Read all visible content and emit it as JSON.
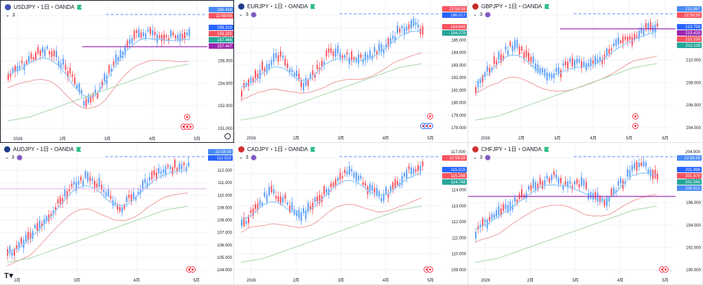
{
  "panes": [
    {
      "id": "usdjpy",
      "symbol_line": "USDJPY・1日・OANDA",
      "flag_color": "#3f51b5",
      "indicator_count": "3",
      "show_purple_dot": false,
      "active": true,
      "price_labels": [
        {
          "text": "160.418",
          "color": "#4a8bf5"
        },
        {
          "text": "22:58:59",
          "color": "#f7525f"
        },
        {
          "text": "159.210",
          "color": "#2962ff"
        },
        {
          "text": "158.282",
          "color": "#f7525f"
        },
        {
          "text": "157.466",
          "color": "#26a69a"
        },
        {
          "text": "157.447",
          "color": "#9c27b0"
        }
      ],
      "y_ticks": [
        "160.000",
        "158.000",
        "156.000",
        "154.000",
        "152.000",
        "151.000"
      ],
      "x_ticks": [
        "2026",
        "2月",
        "3月",
        "4月",
        "5月"
      ],
      "hline_color": "#9c27b0"
    },
    {
      "id": "eurjpy",
      "symbol_line": "EURJPY・1日・OANDA",
      "flag_color": "#1e3a8a",
      "indicator_count": "3",
      "show_purple_dot": true,
      "active": false,
      "price_labels": [
        {
          "text": "22:58:59",
          "color": "#f7525f"
        },
        {
          "text": "186.017",
          "color": "#2962ff"
        },
        {
          "text": "184.649",
          "color": "#f7525f"
        },
        {
          "text": "184.279",
          "color": "#26a69a"
        }
      ],
      "y_ticks": [
        "188.000",
        "187.000",
        "185.000",
        "184.000",
        "183.000",
        "182.000",
        "181.000",
        "180.000",
        "179.000",
        "178.000"
      ],
      "x_ticks": [
        "2026",
        "2月",
        "3月",
        "4月",
        "5月"
      ],
      "hline_color": ""
    },
    {
      "id": "gbpjpy",
      "symbol_line": "GBPJPY・1日・OANDA",
      "flag_color": "#c62828",
      "indicator_count": "3",
      "show_purple_dot": true,
      "active": false,
      "price_labels": [
        {
          "text": "215.887",
          "color": "#4a8bf5"
        },
        {
          "text": "22:58:59",
          "color": "#f7525f"
        },
        {
          "text": "213.759",
          "color": "#2962ff"
        },
        {
          "text": "213.429",
          "color": "#9c27b0"
        },
        {
          "text": "212.238",
          "color": "#f7525f"
        },
        {
          "text": "212.118",
          "color": "#26a69a"
        }
      ],
      "y_ticks": [
        "214.000",
        "212.000",
        "210.000",
        "208.000",
        "206.000",
        "204.000"
      ],
      "x_ticks": [
        "2026",
        "2月",
        "3月",
        "4月",
        "5月",
        "6月"
      ],
      "hline_color": "#9c27b0"
    },
    {
      "id": "audjpy",
      "symbol_line": "AUDJPY・1日・OANDA",
      "flag_color": "#1e3a8a",
      "indicator_count": "3",
      "show_purple_dot": true,
      "active": false,
      "price_labels": [
        {
          "text": "22:58:59",
          "color": "#4a8bf5"
        },
        {
          "text": "112.522",
          "color": "#2962ff"
        }
      ],
      "y_ticks": [
        "113.000",
        "112.000",
        "111.000",
        "110.000",
        "109.000",
        "108.000",
        "107.000",
        "106.000",
        "105.000",
        "104.000"
      ],
      "x_ticks": [
        "2月",
        "3月",
        "4月",
        "5月"
      ],
      "hline_color": "#e1bee7"
    },
    {
      "id": "cadjpy",
      "symbol_line": "CADJPY・1日・OANDA",
      "flag_color": "#d32f2f",
      "indicator_count": "3",
      "show_purple_dot": true,
      "active": false,
      "price_labels": [
        {
          "text": "117.000",
          "color": ""
        },
        {
          "text": "22:58:59",
          "color": "#f7525f"
        },
        {
          "text": "115.515",
          "color": "#2962ff"
        },
        {
          "text": "115.268",
          "color": "#f7525f"
        },
        {
          "text": "114.748",
          "color": "#26a69a"
        }
      ],
      "y_ticks": [
        "117.000",
        "116.000",
        "114.000",
        "113.000",
        "112.000",
        "111.000",
        "110.000",
        "109.000"
      ],
      "x_ticks": [
        "2026",
        "2月",
        "3月",
        "4月",
        "5月"
      ],
      "hline_color": ""
    },
    {
      "id": "chfjpy",
      "symbol_line": "CHFJPY・1日・OANDA",
      "flag_color": "#d32f2f",
      "indicator_count": "3",
      "show_purple_dot": true,
      "active": false,
      "price_labels": [
        {
          "text": "204.000",
          "color": ""
        },
        {
          "text": "22:58:59",
          "color": "#4a8bf5"
        },
        {
          "text": "201.896",
          "color": "#2962ff"
        },
        {
          "text": "201.670",
          "color": "#f7525f"
        },
        {
          "text": "201.040",
          "color": "#26a69a"
        },
        {
          "text": "200.012",
          "color": "#4a8bf5"
        }
      ],
      "y_ticks": [
        "202.000",
        "198.000",
        "196.000",
        "194.000",
        "192.000",
        "190.000"
      ],
      "x_ticks": [
        "2026",
        "2月",
        "3月",
        "4月",
        "5月"
      ],
      "hline_color": "#9c27b0"
    }
  ],
  "colors": {
    "up": "#5b9cf6",
    "down": "#f7525f",
    "ma_fast": "#90caf9",
    "ma_mid": "#ef9a9a",
    "ma_slow": "#a5d6a7",
    "grid": "#f0f3fa"
  }
}
